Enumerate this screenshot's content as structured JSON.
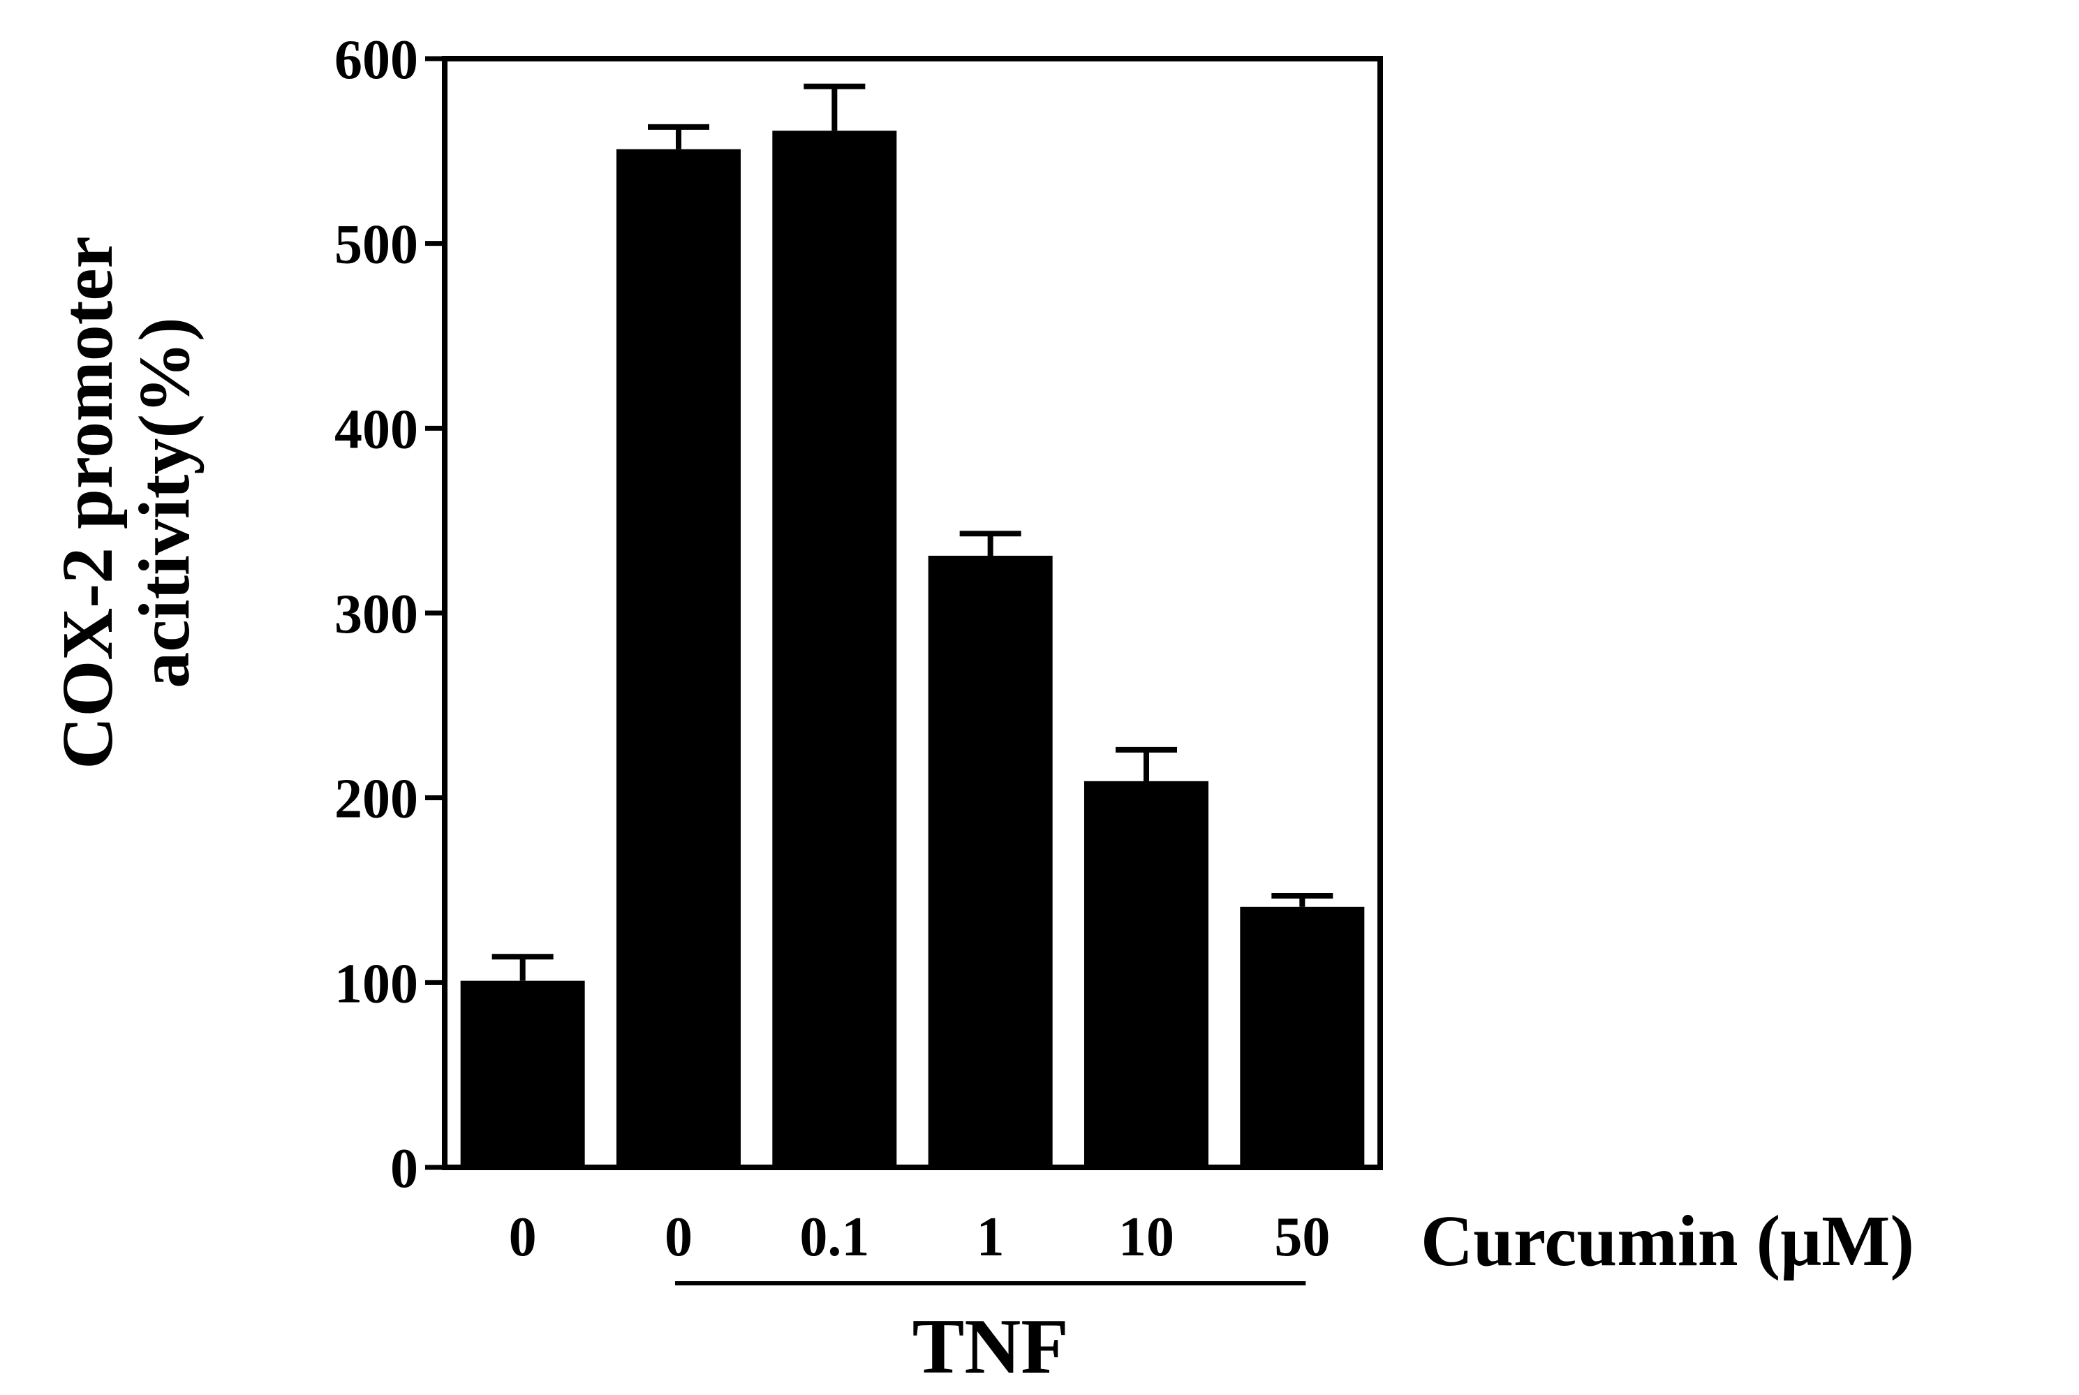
{
  "chart_data": {
    "type": "bar",
    "ylabel_lines": [
      "COX-2 promoter",
      "acitivity(%)"
    ],
    "x_unit_label": "Curcumin (μM)",
    "group_label": "TNF",
    "group_range": [
      1,
      5
    ],
    "categories": [
      "0",
      "0",
      "0.1",
      "1",
      "10",
      "50"
    ],
    "values": [
      101,
      551,
      561,
      331,
      209,
      141
    ],
    "errors": [
      13,
      12,
      24,
      12,
      17,
      6
    ],
    "ylim": [
      0,
      600
    ],
    "yticks": [
      0,
      100,
      200,
      300,
      400,
      500,
      600
    ],
    "grid": false,
    "bar_color": "#000000"
  }
}
